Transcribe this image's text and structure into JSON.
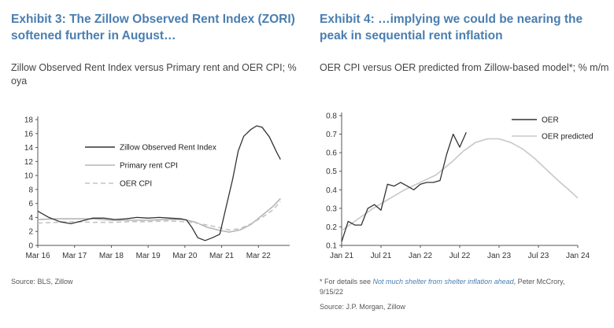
{
  "exhibit3": {
    "title": "Exhibit 3: The Zillow Observed Rent Index (ZORI) softened further in August…",
    "subtitle": "Zillow Observed Rent Index versus Primary rent and OER CPI; % oya",
    "source": "Source: BLS, Zillow"
  },
  "exhibit4": {
    "title": "Exhibit 4: …implying we could be nearing the peak in sequential rent inflation",
    "subtitle": "OER CPI versus OER predicted from Zillow-based model*; % m/m",
    "footnote_prefix": "* For details see ",
    "footnote_link": "Not much shelter from shelter inflation ahead",
    "footnote_suffix": ", Peter McCrory, 9/15/22",
    "source": "Source: J.P. Morgan, Zillow"
  },
  "chart_data": [
    {
      "type": "line",
      "title": "Exhibit 3: The Zillow Observed Rent Index (ZORI) softened further in August…",
      "subtitle": "Zillow Observed Rent Index versus Primary rent and OER CPI; % oya",
      "x_unit": "year",
      "xlim": [
        2016,
        2022.85
      ],
      "ylim": [
        0,
        18
      ],
      "x_ticks": [
        {
          "x": 2016,
          "label": "Mar 16"
        },
        {
          "x": 2017,
          "label": "Mar 17"
        },
        {
          "x": 2018,
          "label": "Mar 18"
        },
        {
          "x": 2019,
          "label": "Mar 19"
        },
        {
          "x": 2020,
          "label": "Mar 20"
        },
        {
          "x": 2021,
          "label": "Mar 21"
        },
        {
          "x": 2022,
          "label": "Mar 22"
        }
      ],
      "y_ticks": [
        0,
        2,
        4,
        6,
        8,
        10,
        12,
        14,
        16,
        18
      ],
      "grid": false,
      "legend": "center",
      "series": [
        {
          "name": "Zillow Observed Rent Index",
          "color": "#333333",
          "dash": "solid",
          "points": [
            [
              2016,
              4.9
            ],
            [
              2016.3,
              4.0
            ],
            [
              2016.6,
              3.4
            ],
            [
              2016.9,
              3.1
            ],
            [
              2017.2,
              3.5
            ],
            [
              2017.5,
              3.9
            ],
            [
              2017.8,
              3.9
            ],
            [
              2018.1,
              3.7
            ],
            [
              2018.4,
              3.8
            ],
            [
              2018.7,
              4.0
            ],
            [
              2019.0,
              3.9
            ],
            [
              2019.3,
              4.0
            ],
            [
              2019.6,
              3.9
            ],
            [
              2019.9,
              3.8
            ],
            [
              2020.05,
              3.6
            ],
            [
              2020.2,
              2.5
            ],
            [
              2020.35,
              1.1
            ],
            [
              2020.55,
              0.7
            ],
            [
              2020.75,
              1.1
            ],
            [
              2020.95,
              1.6
            ],
            [
              2021.1,
              5.0
            ],
            [
              2021.3,
              9.5
            ],
            [
              2021.45,
              13.5
            ],
            [
              2021.6,
              15.6
            ],
            [
              2021.8,
              16.6
            ],
            [
              2021.95,
              17.1
            ],
            [
              2022.1,
              16.9
            ],
            [
              2022.3,
              15.5
            ],
            [
              2022.5,
              13.3
            ],
            [
              2022.6,
              12.3
            ]
          ]
        },
        {
          "name": "Primary rent CPI",
          "color": "#b5b5b5",
          "dash": "solid",
          "points": [
            [
              2016,
              3.7
            ],
            [
              2016.5,
              3.8
            ],
            [
              2017.0,
              3.8
            ],
            [
              2017.5,
              3.8
            ],
            [
              2018.0,
              3.6
            ],
            [
              2018.5,
              3.6
            ],
            [
              2019.0,
              3.6
            ],
            [
              2019.5,
              3.7
            ],
            [
              2020.0,
              3.7
            ],
            [
              2020.3,
              3.3
            ],
            [
              2020.6,
              2.6
            ],
            [
              2020.9,
              2.2
            ],
            [
              2021.2,
              1.9
            ],
            [
              2021.5,
              2.2
            ],
            [
              2021.8,
              3.0
            ],
            [
              2022.1,
              4.3
            ],
            [
              2022.4,
              5.6
            ],
            [
              2022.6,
              6.7
            ]
          ]
        },
        {
          "name": "OER CPI",
          "color": "#c4c4c4",
          "dash": "dashed",
          "points": [
            [
              2016,
              3.2
            ],
            [
              2016.5,
              3.3
            ],
            [
              2017.0,
              3.4
            ],
            [
              2017.5,
              3.3
            ],
            [
              2018.0,
              3.3
            ],
            [
              2018.5,
              3.4
            ],
            [
              2019.0,
              3.4
            ],
            [
              2019.5,
              3.5
            ],
            [
              2020.0,
              3.4
            ],
            [
              2020.3,
              3.2
            ],
            [
              2020.6,
              2.9
            ],
            [
              2020.9,
              2.6
            ],
            [
              2021.2,
              2.2
            ],
            [
              2021.5,
              2.4
            ],
            [
              2021.8,
              3.1
            ],
            [
              2022.1,
              4.0
            ],
            [
              2022.4,
              5.1
            ],
            [
              2022.6,
              6.3
            ]
          ]
        }
      ]
    },
    {
      "type": "line",
      "title": "Exhibit 4: …implying we could be nearing the peak in sequential rent inflation",
      "subtitle": "OER CPI versus OER predicted from Zillow-based model*; % m/m",
      "x_unit": "year",
      "xlim": [
        2021,
        2024
      ],
      "ylim": [
        0.1,
        0.8
      ],
      "x_ticks": [
        {
          "x": 2021,
          "label": "Jan 21"
        },
        {
          "x": 2021.5,
          "label": "Jul 21"
        },
        {
          "x": 2022,
          "label": "Jan 22"
        },
        {
          "x": 2022.5,
          "label": "Jul 22"
        },
        {
          "x": 2023,
          "label": "Jan 23"
        },
        {
          "x": 2023.5,
          "label": "Jul 23"
        },
        {
          "x": 2024,
          "label": "Jan 24"
        }
      ],
      "y_ticks": [
        0.1,
        0.2,
        0.3,
        0.4,
        0.5,
        0.6,
        0.7,
        0.8
      ],
      "grid": false,
      "legend": "top-right",
      "series": [
        {
          "name": "OER",
          "color": "#333333",
          "dash": "solid",
          "points": [
            [
              2021.0,
              0.12
            ],
            [
              2021.083,
              0.23
            ],
            [
              2021.167,
              0.21
            ],
            [
              2021.25,
              0.21
            ],
            [
              2021.333,
              0.3
            ],
            [
              2021.417,
              0.32
            ],
            [
              2021.5,
              0.29
            ],
            [
              2021.583,
              0.43
            ],
            [
              2021.667,
              0.42
            ],
            [
              2021.75,
              0.44
            ],
            [
              2021.833,
              0.42
            ],
            [
              2021.917,
              0.4
            ],
            [
              2022.0,
              0.43
            ],
            [
              2022.083,
              0.44
            ],
            [
              2022.167,
              0.44
            ],
            [
              2022.25,
              0.45
            ],
            [
              2022.333,
              0.59
            ],
            [
              2022.417,
              0.7
            ],
            [
              2022.5,
              0.63
            ],
            [
              2022.583,
              0.71
            ]
          ]
        },
        {
          "name": "OER predicted",
          "color": "#c8c8c8",
          "dash": "solid",
          "points": [
            [
              2021.0,
              0.18
            ],
            [
              2021.2,
              0.24
            ],
            [
              2021.4,
              0.3
            ],
            [
              2021.6,
              0.35
            ],
            [
              2021.8,
              0.4
            ],
            [
              2022.0,
              0.44
            ],
            [
              2022.2,
              0.48
            ],
            [
              2022.4,
              0.55
            ],
            [
              2022.55,
              0.61
            ],
            [
              2022.7,
              0.655
            ],
            [
              2022.85,
              0.675
            ],
            [
              2023.0,
              0.675
            ],
            [
              2023.15,
              0.655
            ],
            [
              2023.3,
              0.62
            ],
            [
              2023.45,
              0.57
            ],
            [
              2023.6,
              0.51
            ],
            [
              2023.75,
              0.45
            ],
            [
              2023.9,
              0.395
            ],
            [
              2024.0,
              0.355
            ]
          ]
        }
      ]
    }
  ]
}
